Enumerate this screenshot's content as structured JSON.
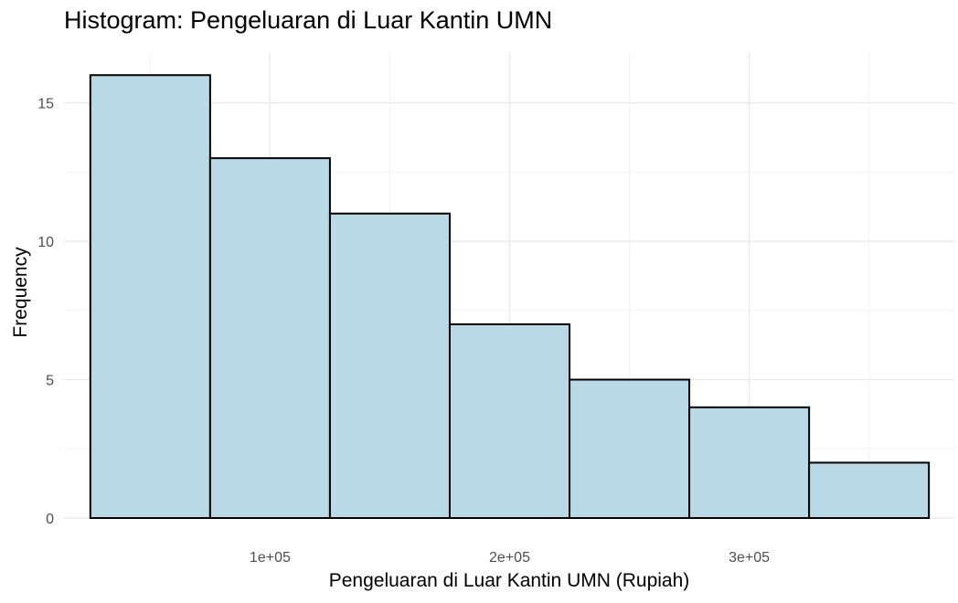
{
  "chart_data": {
    "type": "bar",
    "title": "Histogram: Pengeluaran di Luar Kantin UMN",
    "xlabel": "Pengeluaran di Luar Kantin UMN (Rupiah)",
    "ylabel": "Frequency",
    "bins": [
      {
        "x_start": 25000,
        "x_end": 75000,
        "count": 16
      },
      {
        "x_start": 75000,
        "x_end": 125000,
        "count": 13
      },
      {
        "x_start": 125000,
        "x_end": 175000,
        "count": 11
      },
      {
        "x_start": 175000,
        "x_end": 225000,
        "count": 7
      },
      {
        "x_start": 225000,
        "x_end": 275000,
        "count": 5
      },
      {
        "x_start": 275000,
        "x_end": 325000,
        "count": 4
      },
      {
        "x_start": 325000,
        "x_end": 375000,
        "count": 2
      }
    ],
    "xlim": [
      14000,
      386000
    ],
    "ylim": [
      0,
      16.8
    ],
    "x_ticks": [
      {
        "value": 100000,
        "label": "1e+05"
      },
      {
        "value": 200000,
        "label": "2e+05"
      },
      {
        "value": 300000,
        "label": "3e+05"
      }
    ],
    "x_minor_ticks": [
      50000,
      150000,
      250000,
      350000
    ],
    "y_ticks": [
      {
        "value": 0,
        "label": "0"
      },
      {
        "value": 5,
        "label": "5"
      },
      {
        "value": 10,
        "label": "10"
      },
      {
        "value": 15,
        "label": "15"
      }
    ],
    "y_minor_ticks": [
      2.5,
      7.5,
      12.5
    ],
    "grid": true,
    "legend": "none",
    "colors": {
      "bar_fill": "#b8d9e5",
      "bar_outline": "#000000",
      "background": "#ffffff",
      "grid": "#ebebeb"
    }
  }
}
